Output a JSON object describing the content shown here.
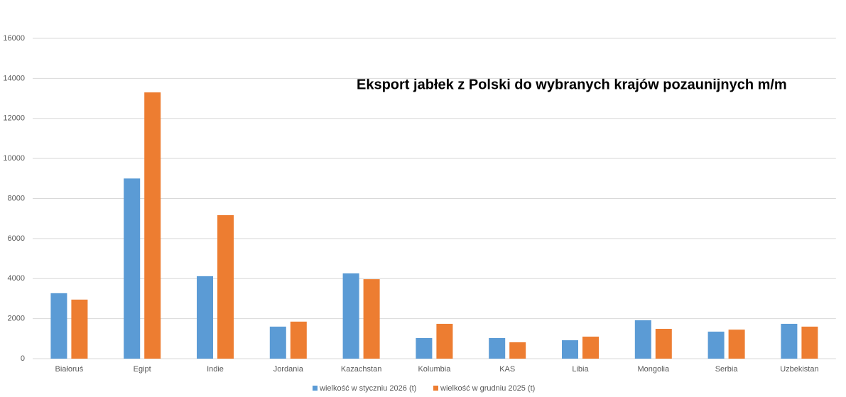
{
  "chart_data": {
    "type": "bar",
    "title": "Eksport jabłek z Polski do wybranych krajów pozaunijnych m/m",
    "categories": [
      "Białoruś",
      "Egipt",
      "Indie",
      "Jordania",
      "Kazachstan",
      "Kolumbia",
      "KAS",
      "Libia",
      "Mongolia",
      "Serbia",
      "Uzbekistan"
    ],
    "series": [
      {
        "name": "wielkość w styczniu 2026 (t)",
        "color": "#5b9bd5",
        "values": [
          3270,
          9000,
          4120,
          1600,
          4260,
          1030,
          1030,
          920,
          1920,
          1350,
          1740
        ]
      },
      {
        "name": "wielkość w grudniu 2025 (t)",
        "color": "#ed7d31",
        "values": [
          2950,
          13300,
          7170,
          1850,
          3970,
          1740,
          820,
          1100,
          1490,
          1450,
          1600
        ]
      }
    ],
    "ylim": [
      0,
      16000
    ],
    "yticks": [
      0,
      2000,
      4000,
      6000,
      8000,
      10000,
      12000,
      14000,
      16000
    ],
    "grid": true,
    "legend": "bottom"
  }
}
